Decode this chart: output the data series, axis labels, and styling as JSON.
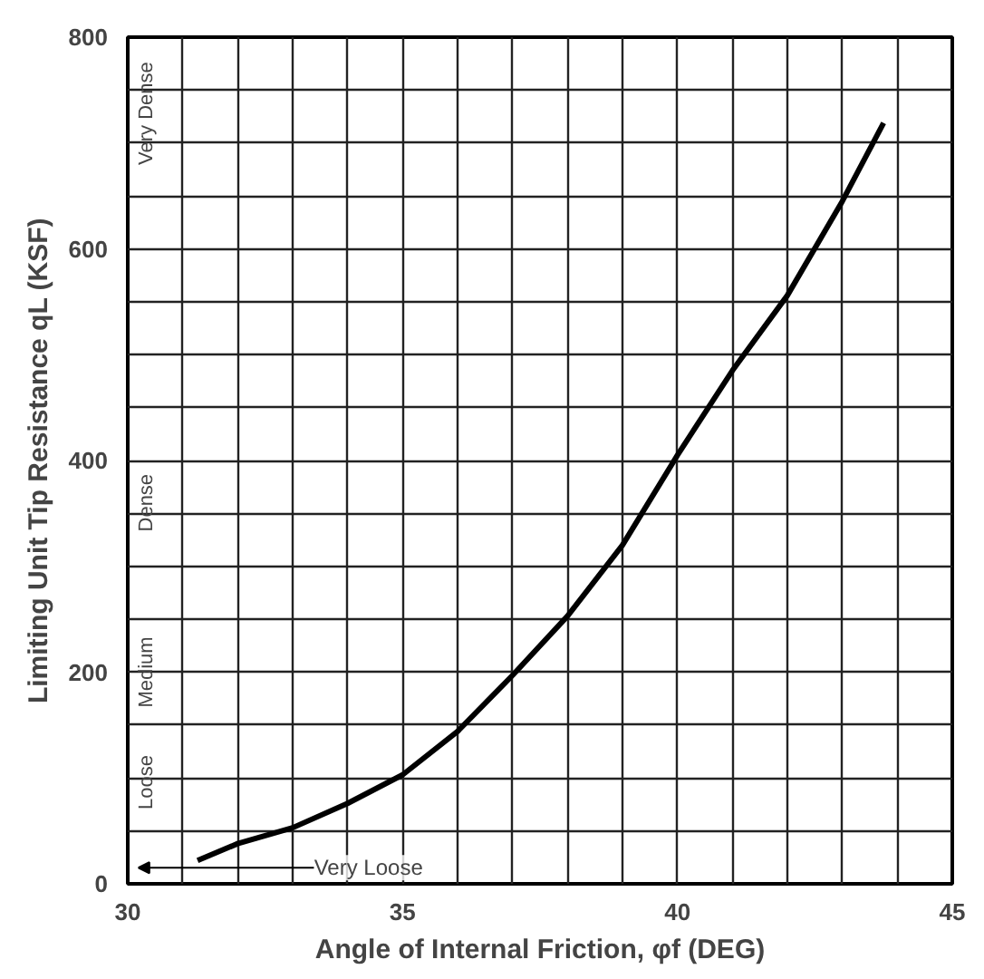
{
  "chart_data": {
    "type": "line",
    "xlabel": "Angle of Internal Friction, φf (DEG)",
    "ylabel": "Limiting Unit Tip Resistance qL (KSF)",
    "x": [
      31.27,
      32,
      33,
      34,
      35,
      36,
      37,
      38,
      39,
      40,
      41,
      42,
      43,
      43.75
    ],
    "series": [
      {
        "color": "#000000",
        "values": [
          22,
          38,
          53,
          76,
          103,
          144,
          197,
          253,
          320,
          405,
          485,
          556,
          645,
          719
        ]
      }
    ],
    "xlim": [
      30,
      45
    ],
    "ylim": [
      0,
      800
    ],
    "xticks": [
      30,
      35,
      40,
      45
    ],
    "yticks": [
      0,
      200,
      400,
      600,
      800
    ],
    "grid": true,
    "marker": "none",
    "line_style": "solid",
    "annotations": [
      "Very Dense",
      "Dense",
      "Medium",
      "Loose",
      "Very Loose"
    ]
  }
}
